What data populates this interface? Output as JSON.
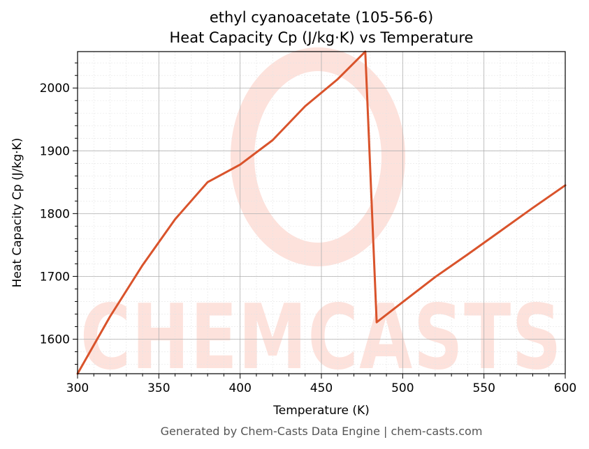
{
  "chart_data": {
    "type": "line",
    "title": "ethyl cyanoacetate (105-56-6)",
    "subtitle": "Heat Capacity Cp (J/kg·K) vs Temperature",
    "xlabel": "Temperature (K)",
    "ylabel": "Heat Capacity Cp (J/kg·K)",
    "xlim": [
      300,
      600
    ],
    "ylim": [
      1545,
      2058
    ],
    "xticks": [
      300,
      350,
      400,
      450,
      500,
      550,
      600
    ],
    "yticks": [
      1600,
      1700,
      1800,
      1900,
      2000
    ],
    "grid": true,
    "minor_grid": true,
    "line_color": "#d9532b",
    "series": [
      {
        "x": [
          300,
          320,
          340,
          360,
          380,
          400,
          420,
          440,
          460,
          477,
          484,
          500,
          520,
          540,
          560,
          580,
          600
        ],
        "y": [
          1545,
          1636,
          1718,
          1791,
          1850,
          1878,
          1917,
          1971,
          2014,
          2058,
          1627,
          1659,
          1699,
          1735,
          1772,
          1809,
          1845
        ]
      }
    ]
  },
  "watermark": {
    "text": "CHEMCASTS",
    "color": "#fde2dc"
  },
  "footer": "Generated by Chem-Casts Data Engine | chem-casts.com"
}
